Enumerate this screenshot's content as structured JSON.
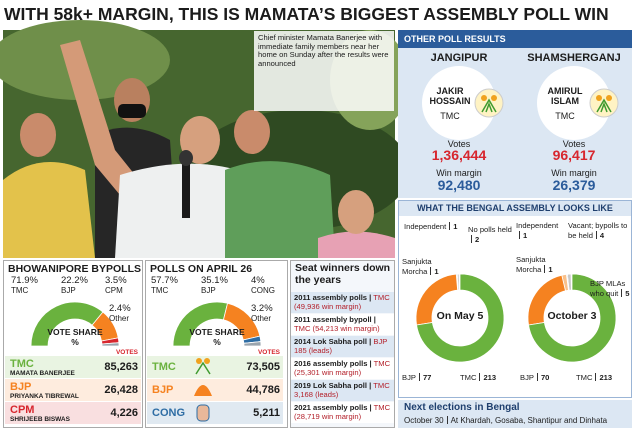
{
  "title": "WITH 58k+ MARGIN, THIS IS MAMATA’S BIGGEST ASSEMBLY POLL WIN",
  "photo_caption": "Chief minister Mamata Banerjee with immediate family members near her home on Sunday after the results were announced",
  "other_polls": {
    "title": "OTHER POLL RESULTS",
    "seats": [
      {
        "constituency": "JANGIPUR",
        "candidate": "JAKIR HOSSAIN",
        "party": "TMC",
        "votes_label": "Votes",
        "votes": "1,36,444",
        "margin_label": "Win margin",
        "margin": "92,480"
      },
      {
        "constituency": "SHAMSHERGANJ",
        "candidate": "AMIRUL ISLAM",
        "party": "TMC",
        "votes_label": "Votes",
        "votes": "96,417",
        "margin_label": "Win margin",
        "margin": "26,379"
      }
    ]
  },
  "assembly_title": "WHAT THE BENGAL ASSEMBLY LOOKS LIKE",
  "chart_data": [
    {
      "type": "pie",
      "donut": true,
      "half": true,
      "title": "BHOWANIPORE BYPOLLS",
      "center_label": "VOTE SHARE %",
      "categories": [
        "TMC",
        "BJP",
        "CPM",
        "Other"
      ],
      "values": [
        71.9,
        22.2,
        3.5,
        2.4
      ],
      "value_labels": [
        "71.9%",
        "22.2%",
        "3.5%",
        "2.4%"
      ],
      "colors": [
        "#6ab23e",
        "#f58220",
        "#d7262e",
        "#9aa4ad"
      ],
      "table": {
        "header": "VOTES",
        "rows": [
          {
            "party": "TMC",
            "candidate": "MAMATA BANERJEE",
            "votes": "85,263"
          },
          {
            "party": "BJP",
            "candidate": "PRIYANKA TIBREWAL",
            "votes": "26,428"
          },
          {
            "party": "CPM",
            "candidate": "SHRIJEEB BISWAS",
            "votes": "4,226"
          }
        ]
      }
    },
    {
      "type": "pie",
      "donut": true,
      "half": true,
      "title": "POLLS ON APRIL 26",
      "center_label": "VOTE SHARE %",
      "categories": [
        "TMC",
        "BJP",
        "CONG",
        "Other"
      ],
      "values": [
        57.7,
        35.1,
        4,
        3.2
      ],
      "value_labels": [
        "57.7%",
        "35.1%",
        "4%",
        "3.2%"
      ],
      "colors": [
        "#6ab23e",
        "#f58220",
        "#2e6da4",
        "#9aa4ad"
      ],
      "table": {
        "header": "VOTES",
        "rows": [
          {
            "party": "TMC",
            "votes": "73,505"
          },
          {
            "party": "BJP",
            "votes": "44,786"
          },
          {
            "party": "CONG",
            "votes": "5,211"
          }
        ]
      }
    },
    {
      "type": "pie",
      "donut": true,
      "half": false,
      "center_label": "On May 5",
      "categories": [
        "Independent",
        "No polls held",
        "Sanjukta Morcha",
        "BJP",
        "TMC"
      ],
      "values": [
        1,
        2,
        1,
        77,
        213
      ],
      "colors": [
        "#7d7d7d",
        "#c8c8c8",
        "#2e6da4",
        "#f58220",
        "#6ab23e"
      ]
    },
    {
      "type": "pie",
      "donut": true,
      "half": false,
      "center_label": "October 3",
      "categories": [
        "Independent",
        "Vacant; bypolls to be held",
        "Sanjukta Morcha",
        "BJP MLAs who quit",
        "BJP",
        "TMC"
      ],
      "values": [
        1,
        4,
        1,
        5,
        70,
        213
      ],
      "colors": [
        "#7d7d7d",
        "#c8c8c8",
        "#2e6da4",
        "#f9c08a",
        "#f58220",
        "#6ab23e"
      ]
    }
  ],
  "seat_winners": {
    "title": "Seat winners down the years",
    "rows": [
      {
        "event": "2011 assembly polls |",
        "result": "TMC (49,936 win margin)"
      },
      {
        "event": "2011 assembly bypoll |",
        "result": "TMC (54,213 win margin)"
      },
      {
        "event": "2014 Lok Sabha poll |",
        "result": "BJP 185 (leads)"
      },
      {
        "event": "2016 assembly polls |",
        "result": "TMC (25,301 win margin)"
      },
      {
        "event": "2019 Lok Sabha poll |",
        "result": "TMC 3,168 (leads)"
      },
      {
        "event": "2021 assembly polls |",
        "result": "TMC (28,719 win margin)"
      }
    ]
  },
  "next_elections": {
    "title": "Next elections in Bengal",
    "date": "October 30",
    "places": "At Khardah, Gosaba, Shantipur and Dinhata"
  }
}
